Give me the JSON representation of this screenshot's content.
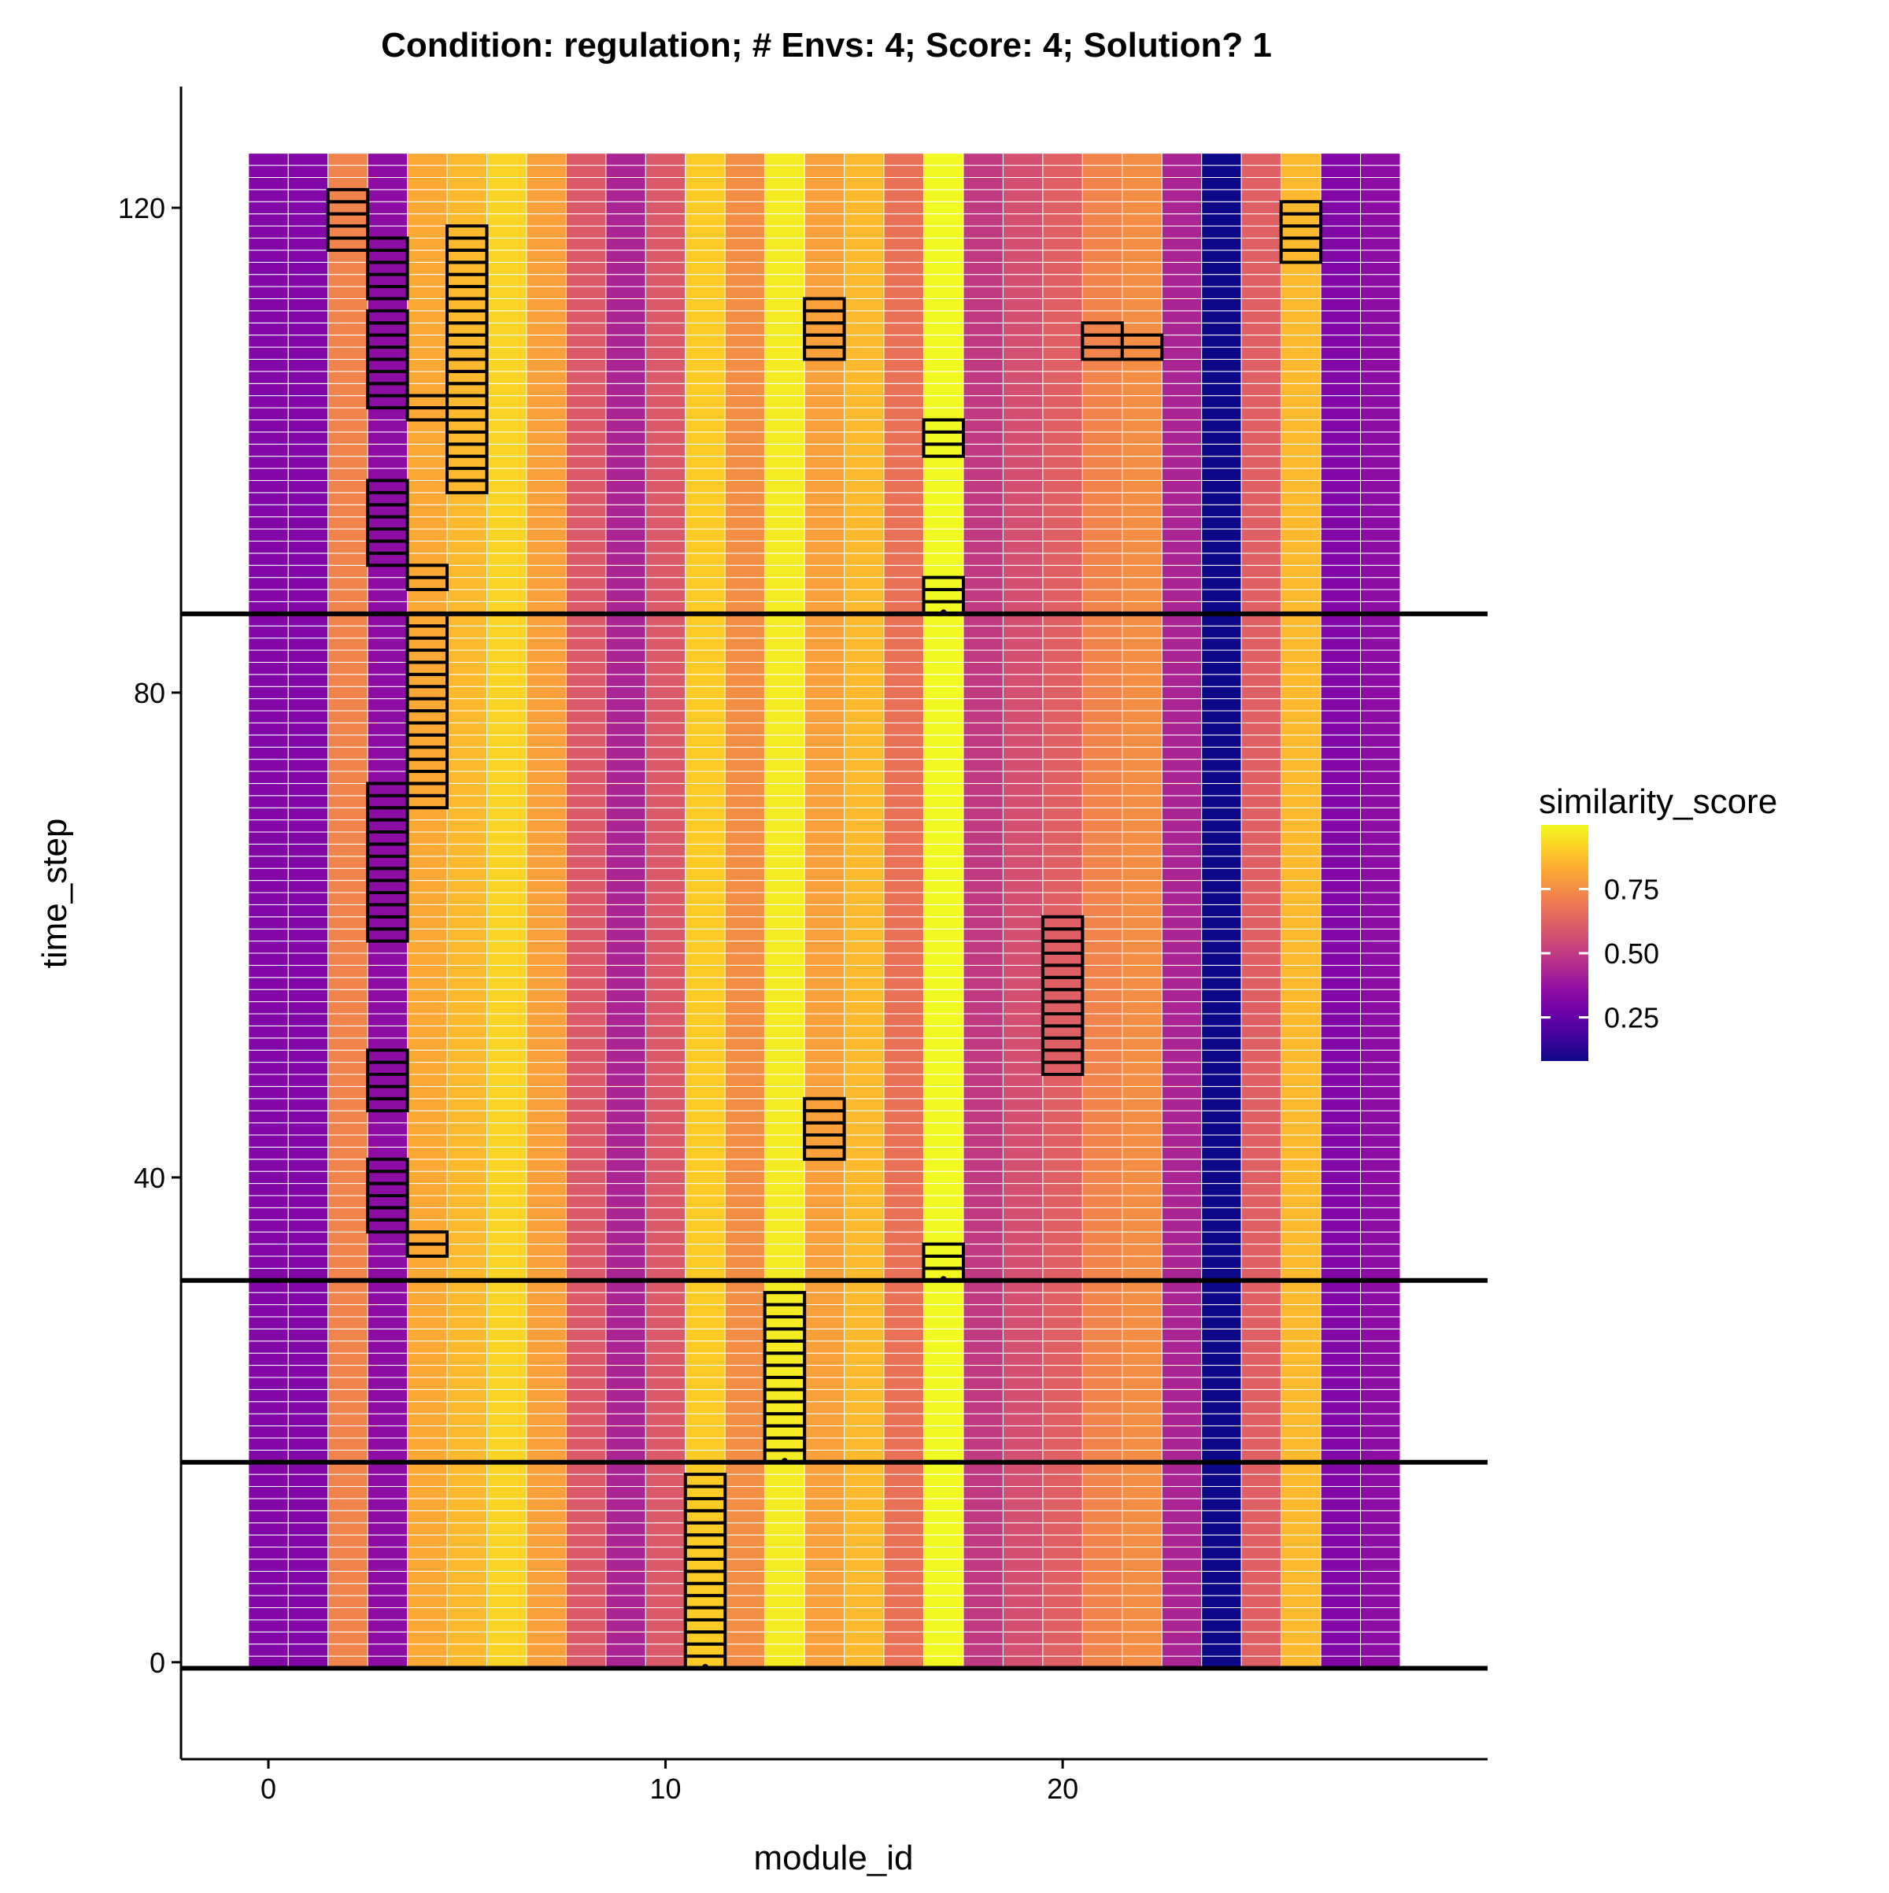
{
  "chart_data": {
    "type": "heatmap",
    "title": "Condition: regulation; # Envs: 4; Score: 4; Solution? 1",
    "xlabel": "module_id",
    "ylabel": "time_step",
    "xlim": [
      -2.2,
      30.7
    ],
    "ylim": [
      -8,
      130
    ],
    "x_ticks": [
      0,
      10,
      20
    ],
    "y_ticks": [
      0,
      40,
      80,
      120
    ],
    "time_steps": [
      0,
      124
    ],
    "module_scores": [
      {
        "module_id": 0,
        "similarity_score": 0.32
      },
      {
        "module_id": 1,
        "similarity_score": 0.32
      },
      {
        "module_id": 2,
        "similarity_score": 0.72
      },
      {
        "module_id": 3,
        "similarity_score": 0.35
      },
      {
        "module_id": 4,
        "similarity_score": 0.82
      },
      {
        "module_id": 5,
        "similarity_score": 0.86
      },
      {
        "module_id": 6,
        "similarity_score": 0.92
      },
      {
        "module_id": 7,
        "similarity_score": 0.8
      },
      {
        "module_id": 8,
        "similarity_score": 0.6
      },
      {
        "module_id": 9,
        "similarity_score": 0.43
      },
      {
        "module_id": 10,
        "similarity_score": 0.6
      },
      {
        "module_id": 11,
        "similarity_score": 0.9
      },
      {
        "module_id": 12,
        "similarity_score": 0.75
      },
      {
        "module_id": 13,
        "similarity_score": 0.97
      },
      {
        "module_id": 14,
        "similarity_score": 0.8
      },
      {
        "module_id": 15,
        "similarity_score": 0.86
      },
      {
        "module_id": 16,
        "similarity_score": 0.67
      },
      {
        "module_id": 17,
        "similarity_score": 1.0
      },
      {
        "module_id": 18,
        "similarity_score": 0.5
      },
      {
        "module_id": 19,
        "similarity_score": 0.57
      },
      {
        "module_id": 20,
        "similarity_score": 0.62
      },
      {
        "module_id": 21,
        "similarity_score": 0.72
      },
      {
        "module_id": 22,
        "similarity_score": 0.75
      },
      {
        "module_id": 23,
        "similarity_score": 0.43
      },
      {
        "module_id": 24,
        "similarity_score": 0.08
      },
      {
        "module_id": 25,
        "similarity_score": 0.62
      },
      {
        "module_id": 26,
        "similarity_score": 0.86
      },
      {
        "module_id": 27,
        "similarity_score": 0.32
      },
      {
        "module_id": 28,
        "similarity_score": 0.35
      }
    ],
    "highlighted_runs": [
      {
        "module_id": 11,
        "from": 0,
        "to": 15
      },
      {
        "module_id": 13,
        "from": 17,
        "to": 30
      },
      {
        "module_id": 17,
        "from": 32,
        "to": 34
      },
      {
        "module_id": 4,
        "from": 34,
        "to": 35
      },
      {
        "module_id": 3,
        "from": 36,
        "to": 41
      },
      {
        "module_id": 14,
        "from": 42,
        "to": 46
      },
      {
        "module_id": 3,
        "from": 46,
        "to": 50
      },
      {
        "module_id": 20,
        "from": 49,
        "to": 61
      },
      {
        "module_id": 3,
        "from": 60,
        "to": 72
      },
      {
        "module_id": 4,
        "from": 71,
        "to": 86
      },
      {
        "module_id": 17,
        "from": 87,
        "to": 89
      },
      {
        "module_id": 4,
        "from": 89,
        "to": 90
      },
      {
        "module_id": 3,
        "from": 91,
        "to": 97
      },
      {
        "module_id": 5,
        "from": 97,
        "to": 110
      },
      {
        "module_id": 17,
        "from": 100,
        "to": 102
      },
      {
        "module_id": 4,
        "from": 103,
        "to": 104
      },
      {
        "module_id": 3,
        "from": 104,
        "to": 111
      },
      {
        "module_id": 14,
        "from": 108,
        "to": 112
      },
      {
        "module_id": 21,
        "from": 108,
        "to": 110
      },
      {
        "module_id": 22,
        "from": 108,
        "to": 109
      },
      {
        "module_id": 5,
        "from": 111,
        "to": 118
      },
      {
        "module_id": 3,
        "from": 113,
        "to": 117
      },
      {
        "module_id": 2,
        "from": 117,
        "to": 121
      },
      {
        "module_id": 26,
        "from": 116,
        "to": 120
      }
    ],
    "phase_marker_points": [
      {
        "module_id": 11,
        "time_step": 0
      },
      {
        "module_id": 13,
        "time_step": 17
      },
      {
        "module_id": 17,
        "time_step": 32
      },
      {
        "module_id": 17,
        "time_step": 87
      }
    ],
    "environment_change_lines": [
      -0.5,
      16.5,
      31.5,
      86.5
    ],
    "legend": {
      "title": "similarity_score",
      "labels": [
        "0.75",
        "0.50",
        "0.25"
      ],
      "values": [
        0.75,
        0.5,
        0.25
      ],
      "range": [
        0.08,
        1.0
      ],
      "placement": "right"
    },
    "colormap": "plasma"
  }
}
